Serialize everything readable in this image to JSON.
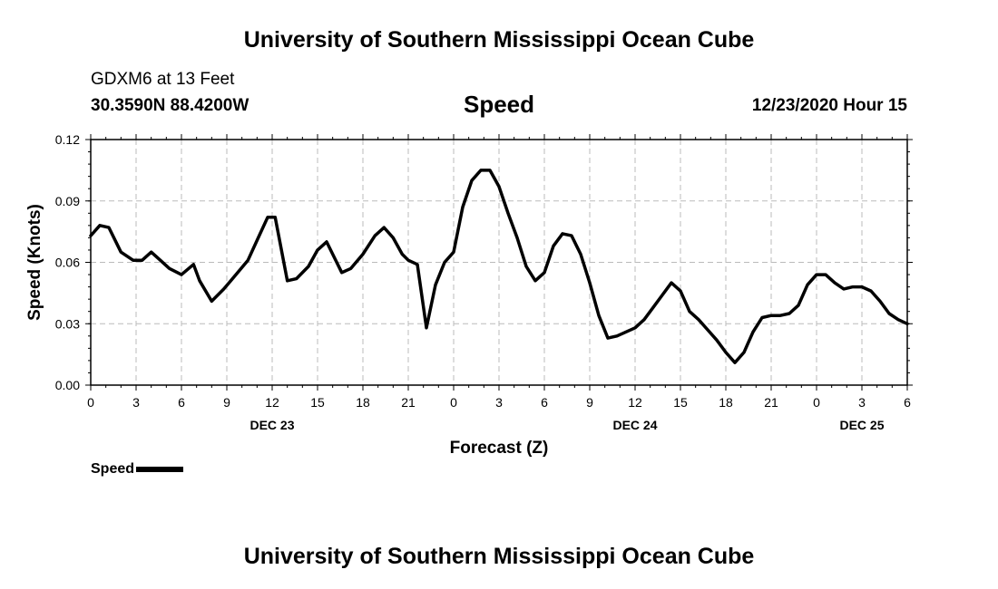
{
  "header": {
    "top_title": "University of Southern Mississippi Ocean Cube",
    "station": "GDXM6 at 13 Feet",
    "coords": "30.3590N 88.4200W",
    "chart_name": "Speed",
    "datetime": "12/23/2020 Hour 15"
  },
  "footer": {
    "bottom_title": "University of Southern Mississippi Ocean Cube"
  },
  "legend": {
    "label": "Speed"
  },
  "colors": {
    "line": "#000000",
    "grid": "#bbbbbb"
  },
  "chart_data": {
    "type": "line",
    "title": "Speed",
    "xlabel": "Forecast (Z)",
    "ylabel": "Speed (Knots)",
    "xlim": [
      0,
      54
    ],
    "ylim": [
      0,
      0.12
    ],
    "grid": true,
    "legend_position": "bottom-left",
    "y_ticks": [
      0,
      0.03,
      0.06,
      0.09,
      0.12
    ],
    "y_tick_labels": [
      "0.00",
      "0.03",
      "0.06",
      "0.09",
      "0.12"
    ],
    "x_ticks": [
      0,
      3,
      6,
      9,
      12,
      15,
      18,
      21,
      24,
      27,
      30,
      33,
      36,
      39,
      42,
      45,
      48,
      51,
      54
    ],
    "x_tick_labels": [
      "0",
      "3",
      "6",
      "9",
      "12",
      "15",
      "18",
      "21",
      "0",
      "3",
      "6",
      "9",
      "12",
      "15",
      "18",
      "21",
      "0",
      "3",
      "6"
    ],
    "date_labels": [
      {
        "text": "DEC 23",
        "x": 12
      },
      {
        "text": "DEC 24",
        "x": 36
      },
      {
        "text": "DEC 25",
        "x": 51
      }
    ],
    "series": [
      {
        "name": "Speed",
        "x": [
          0,
          0.6,
          1.2,
          2,
          2.8,
          3.4,
          4,
          4.6,
          5.2,
          6,
          6.8,
          7.2,
          8,
          8.8,
          9.6,
          10.4,
          11.2,
          11.7,
          12.2,
          13,
          13.6,
          14.4,
          15,
          15.6,
          16,
          16.6,
          17.2,
          18,
          18.8,
          19.4,
          20,
          20.6,
          21,
          21.6,
          22.2,
          22.8,
          23.4,
          24,
          24.6,
          25.2,
          25.8,
          26.4,
          27,
          27.6,
          28.2,
          28.8,
          29.4,
          30,
          30.6,
          31.2,
          31.8,
          32.4,
          33,
          33.6,
          34.2,
          34.8,
          35.4,
          36,
          36.6,
          37.2,
          37.8,
          38.4,
          39,
          39.6,
          40.2,
          40.8,
          41.4,
          42,
          42.6,
          43.2,
          43.8,
          44.4,
          45,
          45.6,
          46.2,
          46.8,
          47.4,
          48,
          48.6,
          49.2,
          49.8,
          50.4,
          51,
          51.6,
          52.2,
          52.8,
          53.4,
          54
        ],
        "values": [
          0.073,
          0.078,
          0.077,
          0.065,
          0.061,
          0.061,
          0.065,
          0.061,
          0.057,
          0.054,
          0.059,
          0.051,
          0.041,
          0.047,
          0.054,
          0.061,
          0.074,
          0.082,
          0.082,
          0.051,
          0.052,
          0.058,
          0.066,
          0.07,
          0.064,
          0.055,
          0.057,
          0.064,
          0.073,
          0.077,
          0.072,
          0.064,
          0.061,
          0.059,
          0.028,
          0.049,
          0.06,
          0.065,
          0.087,
          0.1,
          0.105,
          0.105,
          0.097,
          0.084,
          0.072,
          0.058,
          0.051,
          0.055,
          0.068,
          0.074,
          0.073,
          0.064,
          0.05,
          0.034,
          0.023,
          0.024,
          0.026,
          0.028,
          0.032,
          0.038,
          0.044,
          0.05,
          0.046,
          0.036,
          0.032,
          0.027,
          0.022,
          0.016,
          0.011,
          0.016,
          0.026,
          0.033,
          0.034,
          0.034,
          0.035,
          0.039,
          0.049,
          0.054,
          0.054,
          0.05,
          0.047,
          0.048,
          0.048,
          0.046,
          0.041,
          0.035,
          0.032,
          0.03
        ]
      }
    ]
  }
}
